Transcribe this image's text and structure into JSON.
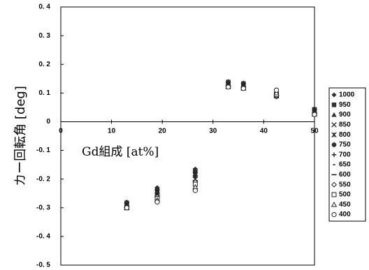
{
  "chart_data": {
    "type": "scatter",
    "title": "",
    "xlabel": "Gd組成 [at%]",
    "ylabel": "カー回転角 [deg]",
    "xlim": [
      0,
      50
    ],
    "ylim": [
      -0.5,
      0.4
    ],
    "x_ticks": [
      0,
      10,
      20,
      30,
      40,
      50
    ],
    "x_tick_labels": [
      "0",
      "10",
      "20",
      "30",
      "40",
      "50"
    ],
    "y_ticks": [
      0.4,
      0.3,
      0.2,
      0.1,
      0,
      -0.1,
      -0.2,
      -0.3,
      -0.4,
      -0.5
    ],
    "y_tick_labels": [
      "0. 4",
      "0. 3",
      "0. 2",
      "0. 1",
      "0",
      "-0. 1",
      "-0. 2",
      "-0. 3",
      "-0. 4",
      "-0. 5"
    ],
    "grid": false,
    "legend_position": "right",
    "series": [
      {
        "name": "1000",
        "marker": "diamond",
        "x": [
          13,
          19,
          26.5,
          33,
          36,
          42.5,
          50
        ],
        "y": [
          -0.28,
          -0.23,
          -0.165,
          0.14,
          0.135,
          0.1,
          0.045
        ]
      },
      {
        "name": "950",
        "marker": "square",
        "x": [
          13,
          19,
          26.5,
          33,
          36,
          42.5,
          50
        ],
        "y": [
          -0.283,
          -0.235,
          -0.17,
          0.138,
          0.133,
          0.098,
          0.043
        ]
      },
      {
        "name": "900",
        "marker": "triangle",
        "x": [
          13,
          19,
          26.5,
          33,
          36,
          42.5,
          50
        ],
        "y": [
          -0.286,
          -0.24,
          -0.175,
          0.135,
          0.13,
          0.095,
          0.04
        ]
      },
      {
        "name": "850",
        "marker": "x",
        "x": [
          13,
          19,
          26.5,
          33,
          36,
          42.5,
          50
        ],
        "y": [
          -0.289,
          -0.243,
          -0.18,
          0.132,
          0.127,
          0.092,
          0.038
        ]
      },
      {
        "name": "800",
        "marker": "star",
        "x": [
          13,
          19,
          26.5,
          33,
          36,
          42.5,
          50
        ],
        "y": [
          -0.292,
          -0.246,
          -0.185,
          0.13,
          0.125,
          0.09,
          0.035
        ]
      },
      {
        "name": "750",
        "marker": "circle-filled",
        "x": [
          13,
          19,
          26.5,
          33,
          36,
          42.5,
          50
        ],
        "y": [
          -0.294,
          -0.249,
          -0.19,
          0.128,
          0.123,
          0.088,
          0.033
        ]
      },
      {
        "name": "700",
        "marker": "plus",
        "x": [
          13,
          19,
          26.5,
          33,
          36,
          42.5,
          50
        ],
        "y": [
          -0.296,
          -0.252,
          -0.195,
          0.126,
          0.121,
          0.087,
          0.031
        ]
      },
      {
        "name": "650",
        "marker": "dash-short",
        "x": [
          13,
          19,
          26.5,
          33,
          36,
          42.5,
          50
        ],
        "y": [
          -0.297,
          -0.255,
          -0.2,
          0.125,
          0.12,
          0.086,
          0.03
        ]
      },
      {
        "name": "600",
        "marker": "dash",
        "x": [
          13,
          19,
          26.5,
          33,
          36,
          42.5,
          50
        ],
        "y": [
          -0.298,
          -0.258,
          -0.205,
          0.124,
          0.119,
          0.085,
          0.029
        ]
      },
      {
        "name": "550",
        "marker": "diamond-open",
        "x": [
          13,
          19,
          26.5,
          33,
          36,
          42.5,
          50
        ],
        "y": [
          -0.299,
          -0.262,
          -0.21,
          0.123,
          0.118,
          0.09,
          0.028
        ]
      },
      {
        "name": "500",
        "marker": "square-open",
        "x": [
          13,
          19,
          26.5,
          33,
          36,
          42.5,
          50
        ],
        "y": [
          -0.3,
          -0.268,
          -0.218,
          0.122,
          0.117,
          0.095,
          0.027
        ]
      },
      {
        "name": "450",
        "marker": "triangle-open",
        "x": [
          13,
          19,
          26.5,
          33,
          36,
          42.5,
          50
        ],
        "y": [
          -0.3,
          -0.273,
          -0.228,
          0.122,
          0.117,
          0.1,
          0.026
        ]
      },
      {
        "name": "400",
        "marker": "circle-open",
        "x": [
          13,
          19,
          26.5,
          33,
          36,
          42.5,
          50
        ],
        "y": [
          -0.3,
          -0.28,
          -0.24,
          0.121,
          0.116,
          0.11,
          0.025
        ]
      }
    ]
  }
}
